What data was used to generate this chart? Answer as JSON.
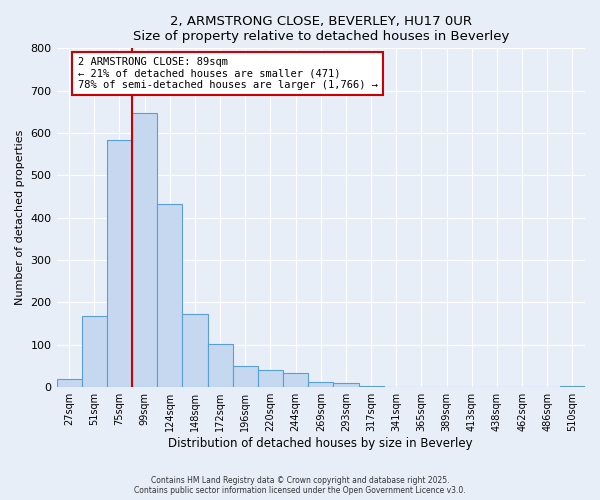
{
  "title": "2, ARMSTRONG CLOSE, BEVERLEY, HU17 0UR",
  "subtitle": "Size of property relative to detached houses in Beverley",
  "xlabel": "Distribution of detached houses by size in Beverley",
  "ylabel": "Number of detached properties",
  "bar_color": "#c5d8f0",
  "bar_edge_color": "#5a9fd4",
  "categories": [
    "27sqm",
    "51sqm",
    "75sqm",
    "99sqm",
    "124sqm",
    "148sqm",
    "172sqm",
    "196sqm",
    "220sqm",
    "244sqm",
    "269sqm",
    "293sqm",
    "317sqm",
    "341sqm",
    "365sqm",
    "389sqm",
    "413sqm",
    "438sqm",
    "462sqm",
    "486sqm",
    "510sqm"
  ],
  "values": [
    20,
    168,
    583,
    648,
    432,
    174,
    101,
    51,
    40,
    33,
    12,
    10,
    2,
    1,
    0,
    0,
    0,
    0,
    0,
    0,
    2
  ],
  "ylim": [
    0,
    800
  ],
  "yticks": [
    0,
    100,
    200,
    300,
    400,
    500,
    600,
    700,
    800
  ],
  "vline_index": 2.5,
  "vline_color": "#cc0000",
  "annotation_text": "2 ARMSTRONG CLOSE: 89sqm\n← 21% of detached houses are smaller (471)\n78% of semi-detached houses are larger (1,766) →",
  "annotation_box_color": "#ffffff",
  "annotation_box_edge": "#cc0000",
  "footnote1": "Contains HM Land Registry data © Crown copyright and database right 2025.",
  "footnote2": "Contains public sector information licensed under the Open Government Licence v3.0.",
  "background_color": "#e8eef8",
  "plot_bg_color": "#e8eef8"
}
